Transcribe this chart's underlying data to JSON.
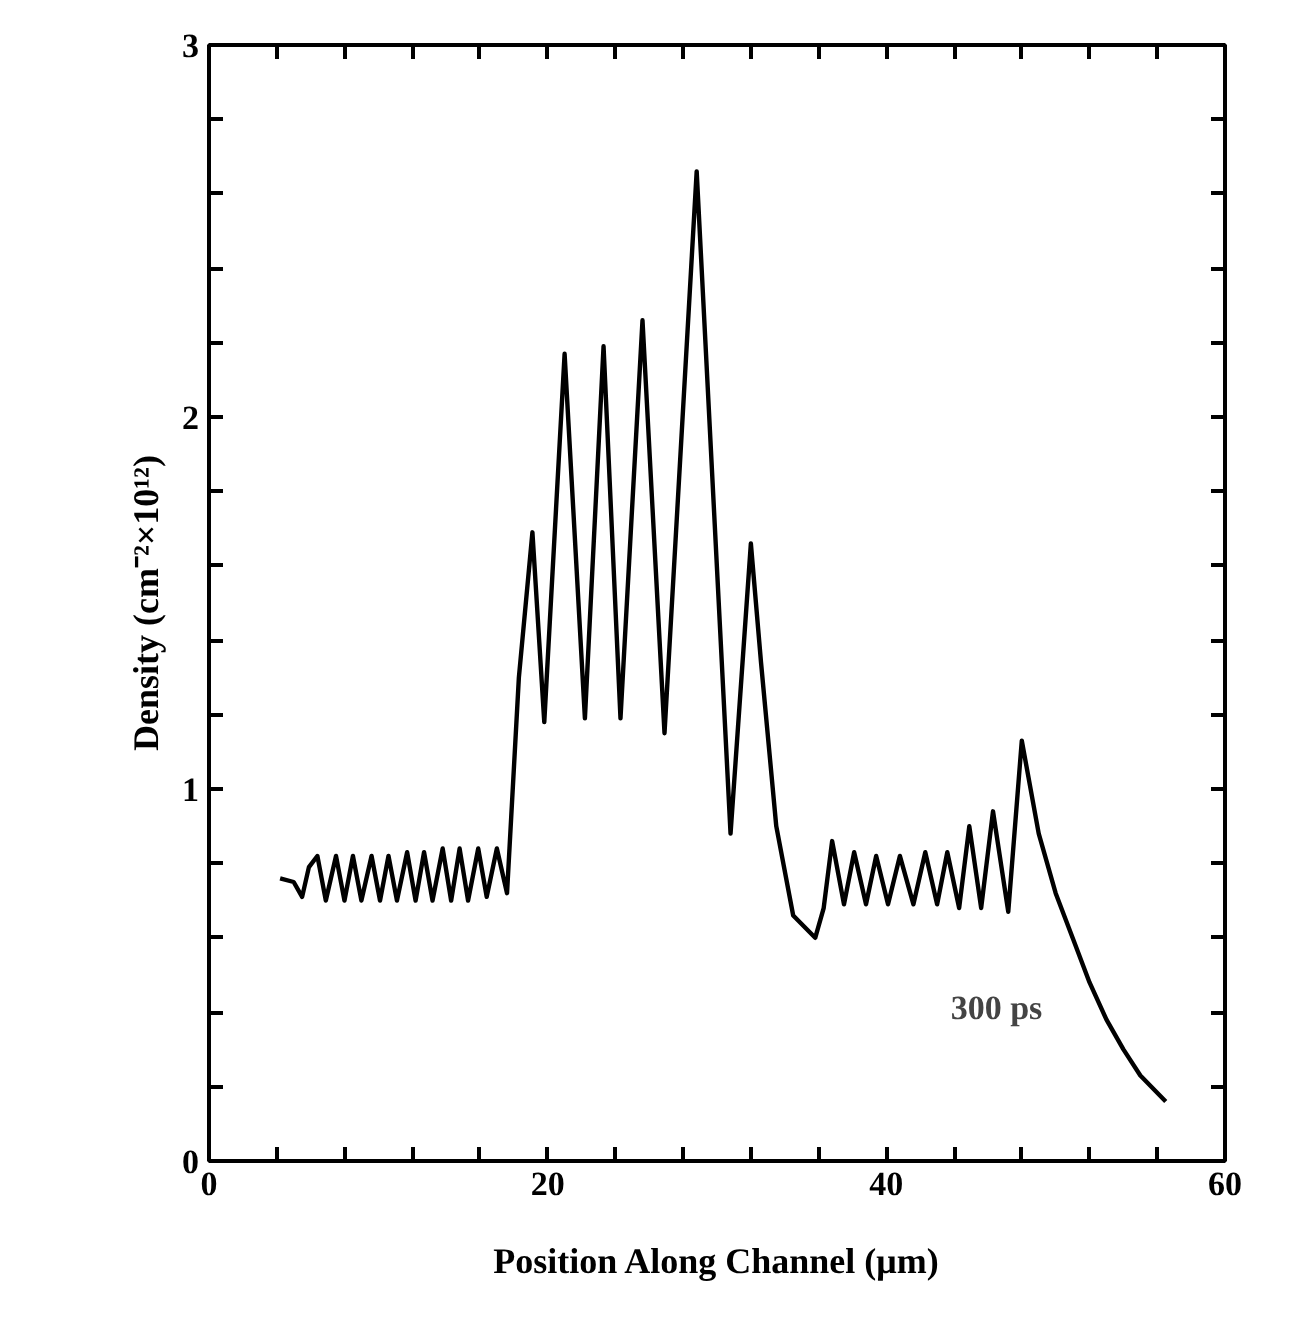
{
  "chart_data": {
    "type": "line",
    "xlabel": "Position Along Channel (μm)",
    "ylabel": "Density (cm⁻²×10¹²)",
    "annotations": [
      "300 ps"
    ],
    "xlim": [
      0,
      60
    ],
    "ylim": [
      0,
      3
    ],
    "xticks": [
      0,
      {
        "value": 4,
        "label": null
      },
      {
        "value": 8,
        "label": null
      },
      {
        "value": 12,
        "label": null
      },
      {
        "value": 16,
        "label": null
      },
      20,
      {
        "value": 24,
        "label": null
      },
      {
        "value": 28,
        "label": null
      },
      {
        "value": 32,
        "label": null
      },
      {
        "value": 36,
        "label": null
      },
      40,
      {
        "value": 44,
        "label": null
      },
      {
        "value": 48,
        "label": null
      },
      {
        "value": 52,
        "label": null
      },
      {
        "value": 56,
        "label": null
      },
      60
    ],
    "yticks": [
      0,
      {
        "value": 0.2,
        "label": null
      },
      {
        "value": 0.4,
        "label": null
      },
      {
        "value": 0.6,
        "label": null
      },
      {
        "value": 0.8,
        "label": null
      },
      1,
      {
        "value": 1.2,
        "label": null
      },
      {
        "value": 1.4,
        "label": null
      },
      {
        "value": 1.6,
        "label": null
      },
      {
        "value": 1.8,
        "label": null
      },
      2,
      {
        "value": 2.2,
        "label": null
      },
      {
        "value": 2.4,
        "label": null
      },
      {
        "value": 2.6,
        "label": null
      },
      {
        "value": 2.8,
        "label": null
      },
      3
    ],
    "grid": false,
    "marker": "none",
    "line_style": "solid",
    "series": [
      {
        "color": "#000000",
        "x": [
          4.2,
          5.0,
          5.5,
          5.9,
          6.4,
          6.9,
          7.5,
          8.0,
          8.5,
          9.0,
          9.6,
          10.1,
          10.6,
          11.1,
          11.7,
          12.2,
          12.7,
          13.2,
          13.8,
          14.3,
          14.8,
          15.3,
          15.9,
          16.4,
          17.0,
          17.6,
          18.3,
          19.1,
          19.8,
          21.0,
          22.2,
          23.3,
          24.3,
          25.6,
          26.9,
          28.8,
          30.8,
          32.0,
          32.6,
          33.5,
          34.5,
          35.8,
          36.3,
          36.8,
          37.5,
          38.1,
          38.8,
          39.4,
          40.1,
          40.8,
          41.6,
          42.3,
          43.0,
          43.6,
          44.3,
          44.9,
          45.6,
          46.3,
          47.2,
          48.0,
          49.0,
          50.0,
          51.0,
          52.0,
          53.0,
          54.0,
          55.0,
          56.5
        ],
        "values": [
          0.76,
          0.75,
          0.71,
          0.79,
          0.82,
          0.7,
          0.82,
          0.7,
          0.82,
          0.7,
          0.82,
          0.7,
          0.82,
          0.7,
          0.83,
          0.7,
          0.83,
          0.7,
          0.84,
          0.7,
          0.84,
          0.7,
          0.84,
          0.71,
          0.84,
          0.72,
          1.3,
          1.69,
          1.18,
          2.17,
          1.19,
          2.19,
          1.19,
          2.26,
          1.15,
          2.66,
          0.88,
          1.66,
          1.34,
          0.9,
          0.66,
          0.6,
          0.68,
          0.86,
          0.69,
          0.83,
          0.69,
          0.82,
          0.69,
          0.82,
          0.69,
          0.83,
          0.69,
          0.83,
          0.68,
          0.9,
          0.68,
          0.94,
          0.67,
          1.13,
          0.88,
          0.72,
          0.6,
          0.48,
          0.38,
          0.3,
          0.23,
          0.16
        ]
      }
    ]
  }
}
